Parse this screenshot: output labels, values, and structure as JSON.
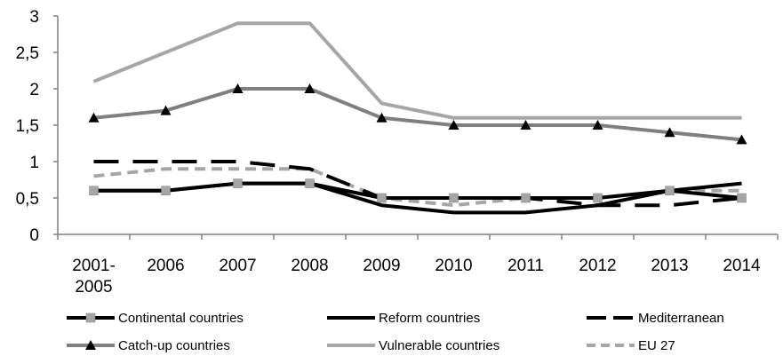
{
  "chart_data": {
    "type": "line",
    "title": "",
    "xlabel": "",
    "ylabel": "",
    "ylim": [
      0,
      3
    ],
    "yticks": [
      "0",
      "0,5",
      "1",
      "1,5",
      "2",
      "2,5",
      "3"
    ],
    "categories": [
      "2001-2005",
      "2006",
      "2007",
      "2008",
      "2009",
      "2010",
      "2011",
      "2012",
      "2013",
      "2014"
    ],
    "category_labels": [
      [
        "2001-",
        "2005"
      ],
      [
        "2006"
      ],
      [
        "2007"
      ],
      [
        "2008"
      ],
      [
        "2009"
      ],
      [
        "2010"
      ],
      [
        "2011"
      ],
      [
        "2012"
      ],
      [
        "2013"
      ],
      [
        "2014"
      ]
    ],
    "grid": false,
    "legend_position": "bottom",
    "series": [
      {
        "name": "Continental countries",
        "color": "#000000",
        "style": "solid",
        "marker": "square",
        "marker_color": "#a6a6a6",
        "values": [
          0.6,
          0.6,
          0.7,
          0.7,
          0.5,
          0.5,
          0.5,
          0.5,
          0.6,
          0.5
        ]
      },
      {
        "name": "Reform countries",
        "color": "#000000",
        "style": "solid",
        "marker": "none",
        "values": [
          0.6,
          0.6,
          0.7,
          0.7,
          0.4,
          0.3,
          0.3,
          0.4,
          0.6,
          0.7
        ]
      },
      {
        "name": "Mediterranean",
        "color": "#000000",
        "style": "longdash",
        "marker": "none",
        "values": [
          1.0,
          1.0,
          1.0,
          0.9,
          0.5,
          0.5,
          0.5,
          0.4,
          0.4,
          0.5
        ]
      },
      {
        "name": "Catch-up countries",
        "color": "#7f7f7f",
        "style": "solid",
        "marker": "triangle",
        "marker_color": "#000000",
        "values": [
          1.6,
          1.7,
          2.0,
          2.0,
          1.6,
          1.5,
          1.5,
          1.5,
          1.4,
          1.3
        ]
      },
      {
        "name": "Vulnerable countries",
        "color": "#a6a6a6",
        "style": "solid",
        "marker": "none",
        "values": [
          2.1,
          2.5,
          2.9,
          2.9,
          1.8,
          1.6,
          1.6,
          1.6,
          1.6,
          1.6
        ]
      },
      {
        "name": "EU 27",
        "color": "#a6a6a6",
        "style": "dash",
        "marker": "none",
        "values": [
          0.8,
          0.9,
          0.9,
          0.9,
          0.5,
          0.4,
          0.5,
          0.5,
          0.6,
          0.6
        ]
      }
    ]
  }
}
